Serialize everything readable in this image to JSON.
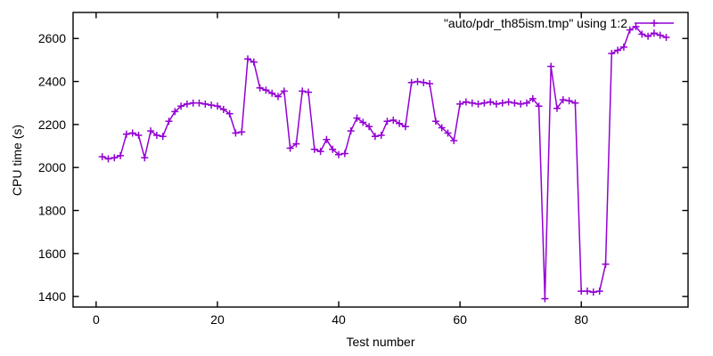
{
  "chart_data": {
    "type": "line",
    "title": "",
    "xlabel": "Test number",
    "ylabel": "CPU time (s)",
    "xlim": [
      -3.8,
      97.6
    ],
    "ylim": [
      1351,
      2721
    ],
    "x_ticks": [
      0,
      20,
      40,
      60,
      80
    ],
    "y_ticks": [
      1400,
      1600,
      1800,
      2000,
      2200,
      2400,
      2600
    ],
    "grid": false,
    "legend_position": "top-right-inside",
    "background_color": "#ffffff",
    "border_color": "#000000",
    "series": [
      {
        "name": "\"auto/pdr_th85ism.tmp\" using 1:2",
        "color": "#9400d3",
        "marker": "plus",
        "x_start": 1,
        "x_step": 1,
        "values": [
          2050,
          2040,
          2045,
          2055,
          2155,
          2160,
          2150,
          2045,
          2170,
          2150,
          2145,
          2215,
          2260,
          2285,
          2295,
          2300,
          2300,
          2295,
          2290,
          2285,
          2270,
          2250,
          2160,
          2165,
          2505,
          2490,
          2370,
          2360,
          2345,
          2330,
          2355,
          2090,
          2110,
          2355,
          2350,
          2085,
          2075,
          2130,
          2085,
          2060,
          2065,
          2170,
          2230,
          2210,
          2190,
          2145,
          2150,
          2215,
          2220,
          2205,
          2190,
          2395,
          2400,
          2395,
          2390,
          2215,
          2185,
          2160,
          2125,
          2295,
          2305,
          2300,
          2295,
          2300,
          2305,
          2295,
          2300,
          2305,
          2300,
          2295,
          2300,
          2320,
          2285,
          1390,
          2470,
          2275,
          2315,
          2310,
          2300,
          1425,
          1425,
          1420,
          1425,
          1550,
          2530,
          2545,
          2560,
          2640,
          2655,
          2620,
          2610,
          2625,
          2615,
          2605
        ]
      }
    ]
  }
}
